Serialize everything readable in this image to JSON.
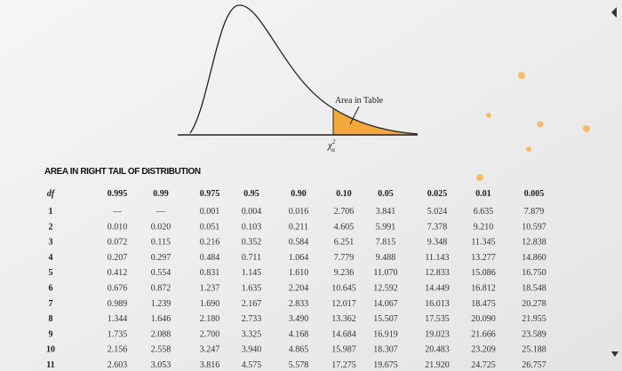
{
  "figure": {
    "annotation": "Area in Table",
    "critical_symbol": "χ",
    "critical_superscript": "2",
    "critical_subscript": "α"
  },
  "table": {
    "title": "AREA IN RIGHT TAIL OF DISTRIBUTION",
    "header": [
      "df",
      "0.995",
      "0.99",
      "0.975",
      "0.95",
      "0.90",
      "0.10",
      "0.05",
      "0.025",
      "0.01",
      "0.005"
    ],
    "rows": [
      [
        "1",
        "—",
        "—",
        "0.001",
        "0.004",
        "0.016",
        "2.706",
        "3.841",
        "5.024",
        "6.635",
        "7.879"
      ],
      [
        "2",
        "0.010",
        "0.020",
        "0.051",
        "0.103",
        "0.211",
        "4.605",
        "5.991",
        "7.378",
        "9.210",
        "10.597"
      ],
      [
        "3",
        "0.072",
        "0.115",
        "0.216",
        "0.352",
        "0.584",
        "6.251",
        "7.815",
        "9.348",
        "11.345",
        "12.838"
      ],
      [
        "4",
        "0.207",
        "0.297",
        "0.484",
        "0.711",
        "1.064",
        "7.779",
        "9.488",
        "11.143",
        "13.277",
        "14.860"
      ],
      [
        "5",
        "0.412",
        "0.554",
        "0.831",
        "1.145",
        "1.610",
        "9.236",
        "11.070",
        "12.833",
        "15.086",
        "16.750"
      ],
      [
        "6",
        "0.676",
        "0.872",
        "1.237",
        "1.635",
        "2.204",
        "10.645",
        "12.592",
        "14.449",
        "16.812",
        "18.548"
      ],
      [
        "7",
        "0.989",
        "1.239",
        "1.690",
        "2.167",
        "2.833",
        "12.017",
        "14.067",
        "16.013",
        "18.475",
        "20.278"
      ],
      [
        "8",
        "1.344",
        "1.646",
        "2.180",
        "2.733",
        "3.490",
        "13.362",
        "15.507",
        "17.535",
        "20.090",
        "21.955"
      ],
      [
        "9",
        "1.735",
        "2.088",
        "2.700",
        "3.325",
        "4.168",
        "14.684",
        "16.919",
        "19.023",
        "21.666",
        "23.589"
      ],
      [
        "10",
        "2.156",
        "2.558",
        "3.247",
        "3.940",
        "4.865",
        "15.987",
        "18.307",
        "20.483",
        "23.209",
        "25.188"
      ],
      [
        "11",
        "2.603",
        "3.053",
        "3.816",
        "4.575",
        "5.578",
        "17.275",
        "19.675",
        "21.920",
        "24.725",
        "26.757"
      ]
    ]
  }
}
